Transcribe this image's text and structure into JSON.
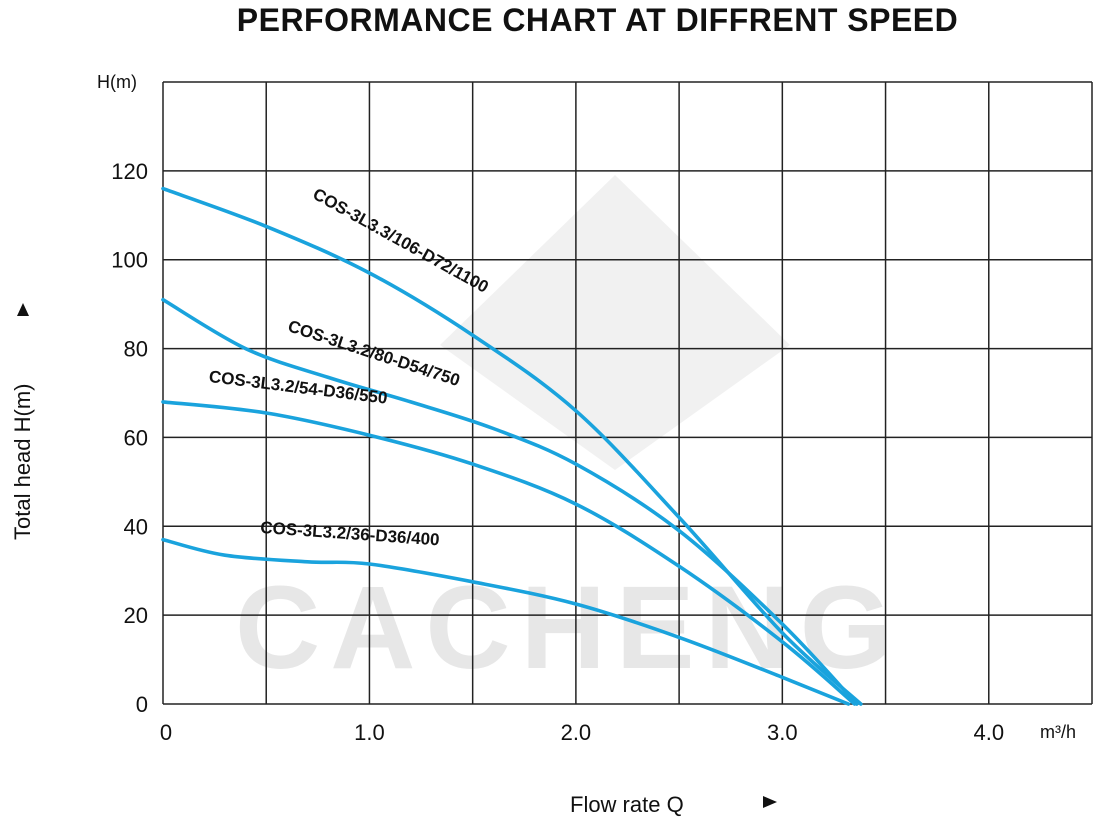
{
  "chart_data": {
    "type": "line",
    "title": "PERFORMANCE CHART AT DIFFRENT SPEED",
    "watermark": "CACHENG",
    "xlabel": "Flow rate  Q",
    "ylabel": "Total  head H(m)",
    "y_unit": "H(m)",
    "x_unit": "m³/h",
    "xlim": [
      0,
      4.5
    ],
    "ylim": [
      0,
      140
    ],
    "x_tick_values": [
      0,
      1,
      2,
      3,
      4
    ],
    "x_tick_labels": [
      "0",
      "1.0",
      "2.0",
      "3.0",
      "4.0"
    ],
    "y_tick_values": [
      0,
      20,
      40,
      60,
      80,
      100,
      120
    ],
    "y_tick_labels": [
      "0",
      "20",
      "40",
      "60",
      "80",
      "100",
      "120"
    ],
    "grid": true,
    "series": [
      {
        "name": "COS-3L3.3/106-D72/1100",
        "x": [
          0,
          0.5,
          1.0,
          1.5,
          2.0,
          2.5,
          3.0,
          3.38
        ],
        "y": [
          116,
          107.5,
          97,
          83,
          66,
          42,
          16,
          0
        ]
      },
      {
        "name": "COS-3L3.2/80-D54/750",
        "x": [
          0,
          0.4,
          0.8,
          1.2,
          1.6,
          2.0,
          2.5,
          3.0,
          3.36
        ],
        "y": [
          91,
          80,
          73.5,
          68,
          62,
          54,
          39,
          18,
          0
        ]
      },
      {
        "name": "COS-3L3.2/54-D36/550",
        "x": [
          0,
          0.5,
          1.0,
          1.5,
          2.0,
          2.5,
          3.0,
          3.35
        ],
        "y": [
          68,
          65.5,
          60.5,
          54,
          45,
          31,
          14,
          0
        ]
      },
      {
        "name": "COS-3L3.2/36-D36/400",
        "x": [
          0,
          0.3,
          0.7,
          1.0,
          1.5,
          2.0,
          2.5,
          3.0,
          3.32
        ],
        "y": [
          37,
          33.5,
          32,
          31.5,
          27.5,
          22.5,
          15,
          6,
          0
        ]
      }
    ],
    "series_color": "#1aa3dd"
  }
}
